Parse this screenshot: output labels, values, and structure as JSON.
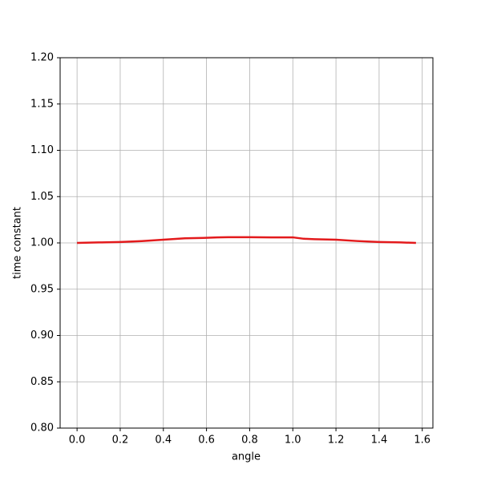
{
  "chart_data": {
    "type": "line",
    "xlabel": "angle",
    "ylabel": "time constant",
    "xlim": [
      -0.0785,
      1.6493
    ],
    "ylim": [
      0.8,
      1.2
    ],
    "xticks": [
      {
        "value": 0,
        "label": "0.0"
      },
      0.2,
      0.4,
      0.6,
      0.8,
      {
        "value": 1,
        "label": "1.0"
      },
      1.2,
      1.4,
      1.6
    ],
    "yticks": [
      {
        "value": 0.8,
        "label": "0.80"
      },
      0.85,
      {
        "value": 0.9,
        "label": "0.90"
      },
      0.95,
      {
        "value": 1,
        "label": "1.00"
      },
      1.05,
      {
        "value": 1.1,
        "label": "1.10"
      },
      1.15,
      {
        "value": 1.2,
        "label": "1.20"
      }
    ],
    "grid": true,
    "series": [
      {
        "color": "#e31a1c",
        "x": [
          0,
          0.1,
          0.2,
          0.3,
          0.4,
          0.5,
          0.6,
          0.65,
          0.7,
          0.8,
          0.9,
          1.0,
          1.05,
          1.1,
          1.2,
          1.3,
          1.4,
          1.5,
          1.5708
        ],
        "values": [
          1.0,
          1.0005,
          1.001,
          1.002,
          1.0035,
          1.005,
          1.0055,
          1.006,
          1.0062,
          1.0062,
          1.006,
          1.006,
          1.0045,
          1.004,
          1.0035,
          1.002,
          1.001,
          1.0005,
          1.0
        ]
      }
    ]
  }
}
